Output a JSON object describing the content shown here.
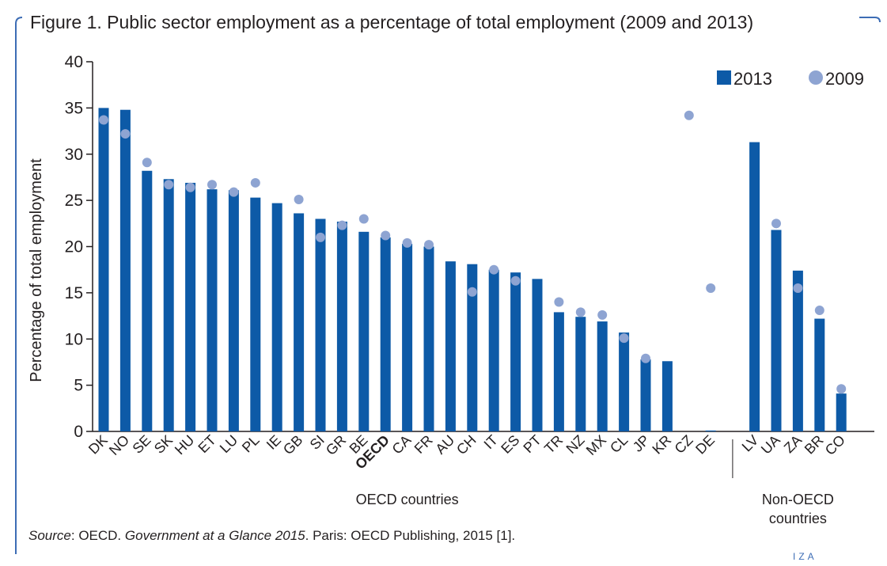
{
  "title": "Figure 1. Public sector employment as a percentage of total employment (2009 and 2013)",
  "source": {
    "label": "Source",
    "sep1": ": OECD. ",
    "publication": "Government at a Glance 2015",
    "rest": ". Paris: OECD Publishing, 2015 [1]."
  },
  "logo_text": "IZA",
  "colors": {
    "bar_2013": "#0d5aa7",
    "dot_2009": "#8ea4d2",
    "frame": "#3d6db5",
    "axis": "#231f20"
  },
  "chart_data": {
    "type": "bar",
    "ylabel": "Percentage of total employment",
    "ylim": [
      0,
      40
    ],
    "yticks": [
      0,
      5,
      10,
      15,
      20,
      25,
      30,
      35,
      40
    ],
    "grid": false,
    "legend_position": "top-right",
    "categories": [
      "DK",
      "NO",
      "SE",
      "SK",
      "HU",
      "ET",
      "LU",
      "PL",
      "IE",
      "GB",
      "SI",
      "GR",
      "BE",
      "OECD",
      "CA",
      "FR",
      "AU",
      "CH",
      "IT",
      "ES",
      "PT",
      "TR",
      "NZ",
      "MX",
      "CL",
      "JP",
      "KR",
      "CZ",
      "DE",
      "LV",
      "UA",
      "ZA",
      "BR",
      "CO"
    ],
    "highlight_category": "OECD",
    "series": [
      {
        "name": "2013",
        "kind": "bar",
        "values": [
          35.0,
          34.8,
          28.2,
          27.3,
          26.9,
          26.2,
          26.1,
          25.3,
          24.7,
          23.6,
          23.0,
          22.7,
          21.6,
          21.0,
          20.3,
          20.0,
          18.4,
          18.1,
          17.5,
          17.2,
          16.5,
          12.9,
          12.4,
          11.9,
          10.7,
          7.8,
          7.6,
          null,
          0.1,
          31.3,
          21.8,
          17.4,
          12.2,
          4.1
        ]
      },
      {
        "name": "2009",
        "kind": "dot",
        "values": [
          33.7,
          32.2,
          29.1,
          26.7,
          26.4,
          26.7,
          25.9,
          26.9,
          null,
          25.1,
          21.0,
          22.3,
          23.0,
          21.2,
          20.4,
          20.2,
          null,
          15.1,
          17.5,
          16.3,
          null,
          14.0,
          12.9,
          12.6,
          10.1,
          7.9,
          null,
          34.2,
          15.5,
          null,
          22.5,
          15.5,
          13.1,
          4.6
        ]
      }
    ],
    "groups": [
      {
        "label": "OECD countries",
        "line1": "OECD countries",
        "line2": "",
        "from": "DK",
        "to": "DE"
      },
      {
        "label": "Non-OECD countries",
        "line1": "Non-OECD",
        "line2": "countries",
        "from": "LV",
        "to": "CO"
      }
    ]
  }
}
